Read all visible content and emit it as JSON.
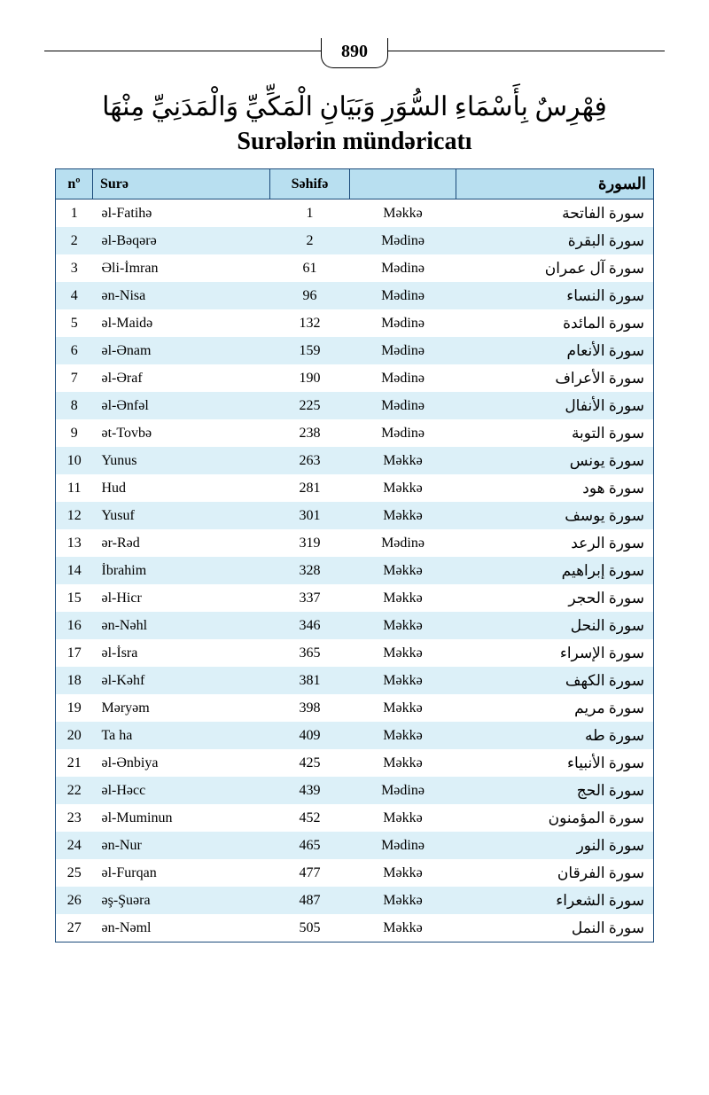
{
  "page_number": "890",
  "arabic_heading": "فِهْرِسٌ بِأَسْمَاءِ السُّوَرِ وَبَيَانِ الْمَكِّيِّ وَالْمَدَنِيِّ مِنْهَا",
  "latin_heading": "Surələrin mündəricatı",
  "columns": {
    "num": "nº",
    "name": "Surə",
    "page": "Səhifə",
    "place": "",
    "arabic": "السورة"
  },
  "colors": {
    "header_bg": "#b8dff0",
    "row_even": "#dcf0f8",
    "row_odd": "#ffffff",
    "border": "#1a4a7a"
  },
  "rows": [
    {
      "n": "1",
      "name": "əl-Fatihə",
      "page": "1",
      "place": "Məkkə",
      "ar": "سورة الفاتحة"
    },
    {
      "n": "2",
      "name": "əl-Bəqərə",
      "page": "2",
      "place": "Mədinə",
      "ar": "سورة البقرة"
    },
    {
      "n": "3",
      "name": "Əli-İmran",
      "page": "61",
      "place": "Mədinə",
      "ar": "سورة آل عمران"
    },
    {
      "n": "4",
      "name": "ən-Nisa",
      "page": "96",
      "place": "Mədinə",
      "ar": "سورة النساء"
    },
    {
      "n": "5",
      "name": "əl-Maidə",
      "page": "132",
      "place": "Mədinə",
      "ar": "سورة المائدة"
    },
    {
      "n": "6",
      "name": "əl-Ənam",
      "page": "159",
      "place": "Mədinə",
      "ar": "سورة الأنعام"
    },
    {
      "n": "7",
      "name": "əl-Əraf",
      "page": "190",
      "place": "Mədinə",
      "ar": "سورة الأعراف"
    },
    {
      "n": "8",
      "name": "əl-Ənfəl",
      "page": "225",
      "place": "Mədinə",
      "ar": "سورة الأنفال"
    },
    {
      "n": "9",
      "name": "ət-Tovbə",
      "page": "238",
      "place": "Mədinə",
      "ar": "سورة التوبة"
    },
    {
      "n": "10",
      "name": "Yunus",
      "page": "263",
      "place": "Məkkə",
      "ar": "سورة يونس"
    },
    {
      "n": "11",
      "name": "Hud",
      "page": "281",
      "place": "Məkkə",
      "ar": "سورة هود"
    },
    {
      "n": "12",
      "name": "Yusuf",
      "page": "301",
      "place": "Məkkə",
      "ar": "سورة يوسف"
    },
    {
      "n": "13",
      "name": "ər-Rəd",
      "page": "319",
      "place": "Mədinə",
      "ar": "سورة الرعد"
    },
    {
      "n": "14",
      "name": "İbrahim",
      "page": "328",
      "place": "Məkkə",
      "ar": "سورة إبراهيم"
    },
    {
      "n": "15",
      "name": "əl-Hicr",
      "page": "337",
      "place": "Məkkə",
      "ar": "سورة الحجر"
    },
    {
      "n": "16",
      "name": "ən-Nəhl",
      "page": "346",
      "place": "Məkkə",
      "ar": "سورة النحل"
    },
    {
      "n": "17",
      "name": "əl-İsra",
      "page": "365",
      "place": "Məkkə",
      "ar": "سورة الإسراء"
    },
    {
      "n": "18",
      "name": "əl-Kəhf",
      "page": "381",
      "place": "Məkkə",
      "ar": "سورة الكهف"
    },
    {
      "n": "19",
      "name": "Məryəm",
      "page": "398",
      "place": "Məkkə",
      "ar": "سورة مريم"
    },
    {
      "n": "20",
      "name": "Ta ha",
      "page": "409",
      "place": "Məkkə",
      "ar": "سورة طه"
    },
    {
      "n": "21",
      "name": "əl-Ənbiya",
      "page": "425",
      "place": "Məkkə",
      "ar": "سورة الأنبياء"
    },
    {
      "n": "22",
      "name": "əl-Həcc",
      "page": "439",
      "place": "Mədinə",
      "ar": "سورة الحج"
    },
    {
      "n": "23",
      "name": "əl-Muminun",
      "page": "452",
      "place": "Məkkə",
      "ar": "سورة المؤمنون"
    },
    {
      "n": "24",
      "name": "ən-Nur",
      "page": "465",
      "place": "Mədinə",
      "ar": "سورة النور"
    },
    {
      "n": "25",
      "name": "əl-Furqan",
      "page": "477",
      "place": "Məkkə",
      "ar": "سورة الفرقان"
    },
    {
      "n": "26",
      "name": "əş-Şuəra",
      "page": "487",
      "place": "Məkkə",
      "ar": "سورة الشعراء"
    },
    {
      "n": "27",
      "name": "ən-Nəml",
      "page": "505",
      "place": "Məkkə",
      "ar": "سورة النمل"
    }
  ]
}
